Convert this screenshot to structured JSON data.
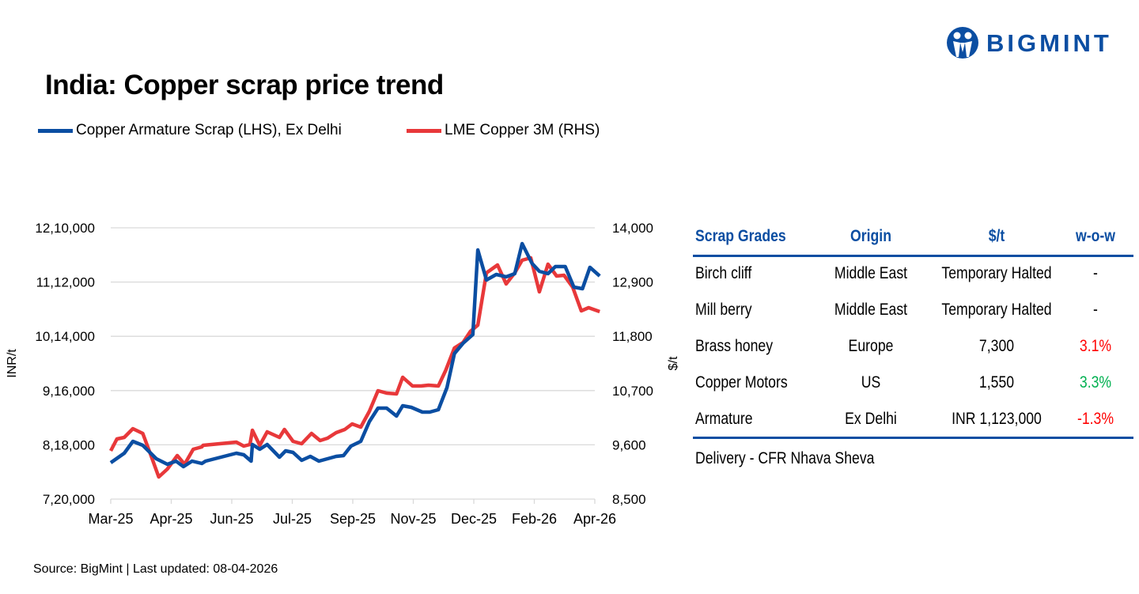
{
  "brand": {
    "name": "BIGMINT",
    "color": "#0b4ea2"
  },
  "title": "India: Copper scrap price trend",
  "source": "Source: BigMint | Last updated: 08-04-2026",
  "chart_data": {
    "type": "line",
    "title": "India: Copper scrap price trend",
    "y_left_label": "INR/t",
    "y_right_label": "$/t",
    "y_left_ticks": [
      "12,10,000",
      "11,12,000",
      "10,14,000",
      "9,16,000",
      "8,18,000",
      "7,20,000"
    ],
    "y_right_ticks": [
      "14,000",
      "12,900",
      "11,800",
      "10,700",
      "9,600",
      "8,500"
    ],
    "ylim_left": [
      720000,
      1210000
    ],
    "ylim_right": [
      8500,
      14000
    ],
    "x_ticks": [
      "Mar-25",
      "Apr-25",
      "Jun-25",
      "Jul-25",
      "Sep-25",
      "Nov-25",
      "Dec-25",
      "Feb-26",
      "Apr-26"
    ],
    "xlim": [
      "2025-03-01",
      "2026-03-29"
    ],
    "grid": "horizontal",
    "legend_position": "top-left",
    "series": [
      {
        "name": "Copper Armature Scrap (LHS), Ex Delhi",
        "axis": "left",
        "color": "#0b4ea2",
        "points": [
          [
            "2025-03-01",
            785700
          ],
          [
            "2025-03-12",
            802850
          ],
          [
            "2025-03-19",
            824300
          ],
          [
            "2025-03-27",
            817100
          ],
          [
            "2025-04-07",
            792900
          ],
          [
            "2025-04-16",
            782900
          ],
          [
            "2025-04-23",
            788600
          ],
          [
            "2025-04-29",
            778600
          ],
          [
            "2025-05-06",
            788600
          ],
          [
            "2025-05-14",
            784300
          ],
          [
            "2025-05-17",
            788600
          ],
          [
            "2025-06-11",
            802900
          ],
          [
            "2025-06-17",
            800000
          ],
          [
            "2025-06-23",
            788600
          ],
          [
            "2025-06-24",
            818600
          ],
          [
            "2025-06-30",
            810000
          ],
          [
            "2025-07-06",
            818600
          ],
          [
            "2025-07-16",
            795700
          ],
          [
            "2025-07-21",
            807100
          ],
          [
            "2025-07-27",
            804300
          ],
          [
            "2025-08-03",
            790000
          ],
          [
            "2025-08-10",
            797100
          ],
          [
            "2025-08-17",
            788600
          ],
          [
            "2025-08-31",
            797100
          ],
          [
            "2025-09-06",
            798600
          ],
          [
            "2025-09-12",
            815700
          ],
          [
            "2025-09-20",
            824300
          ],
          [
            "2025-09-27",
            860000
          ],
          [
            "2025-10-04",
            884300
          ],
          [
            "2025-10-11",
            884300
          ],
          [
            "2025-10-19",
            870000
          ],
          [
            "2025-10-24",
            888600
          ],
          [
            "2025-10-31",
            885700
          ],
          [
            "2025-11-09",
            877100
          ],
          [
            "2025-11-15",
            877100
          ],
          [
            "2025-11-22",
            881400
          ],
          [
            "2025-11-29",
            921400
          ],
          [
            "2025-12-05",
            982900
          ],
          [
            "2025-12-12",
            1001400
          ],
          [
            "2025-12-20",
            1017100
          ],
          [
            "2025-12-24",
            1170000
          ],
          [
            "2025-12-31",
            1115700
          ],
          [
            "2026-01-08",
            1125700
          ],
          [
            "2026-01-16",
            1121400
          ],
          [
            "2026-01-23",
            1127100
          ],
          [
            "2026-01-29",
            1181400
          ],
          [
            "2026-02-06",
            1145700
          ],
          [
            "2026-02-12",
            1131400
          ],
          [
            "2026-02-19",
            1127100
          ],
          [
            "2026-02-25",
            1140000
          ],
          [
            "2026-03-05",
            1140000
          ],
          [
            "2026-03-12",
            1102900
          ],
          [
            "2026-03-19",
            1100000
          ],
          [
            "2026-03-25",
            1138600
          ],
          [
            "2026-04-02",
            1123000
          ]
        ]
      },
      {
        "name": "LME Copper 3M (RHS)",
        "axis": "right",
        "color": "#e8383a",
        "points": [
          [
            "2025-03-01",
            9478
          ],
          [
            "2025-03-06",
            9719
          ],
          [
            "2025-03-12",
            9751
          ],
          [
            "2025-03-19",
            9927
          ],
          [
            "2025-03-27",
            9831
          ],
          [
            "2025-04-02",
            9430
          ],
          [
            "2025-04-09",
            8949
          ],
          [
            "2025-04-16",
            9109
          ],
          [
            "2025-04-24",
            9382
          ],
          [
            "2025-04-30",
            9205
          ],
          [
            "2025-05-07",
            9510
          ],
          [
            "2025-05-14",
            9558
          ],
          [
            "2025-05-15",
            9590
          ],
          [
            "2025-06-11",
            9654
          ],
          [
            "2025-06-17",
            9574
          ],
          [
            "2025-06-22",
            9606
          ],
          [
            "2025-06-24",
            9895
          ],
          [
            "2025-06-30",
            9590
          ],
          [
            "2025-07-06",
            9863
          ],
          [
            "2025-07-16",
            9751
          ],
          [
            "2025-07-20",
            9911
          ],
          [
            "2025-07-27",
            9670
          ],
          [
            "2025-08-03",
            9622
          ],
          [
            "2025-08-11",
            9831
          ],
          [
            "2025-08-18",
            9687
          ],
          [
            "2025-08-24",
            9735
          ],
          [
            "2025-08-31",
            9847
          ],
          [
            "2025-09-07",
            9911
          ],
          [
            "2025-09-13",
            10023
          ],
          [
            "2025-09-20",
            9959
          ],
          [
            "2025-09-27",
            10280
          ],
          [
            "2025-10-04",
            10697
          ],
          [
            "2025-10-11",
            10649
          ],
          [
            "2025-10-19",
            10633
          ],
          [
            "2025-10-24",
            10969
          ],
          [
            "2025-11-01",
            10793
          ],
          [
            "2025-11-08",
            10793
          ],
          [
            "2025-11-14",
            10809
          ],
          [
            "2025-11-22",
            10793
          ],
          [
            "2025-11-28",
            11114
          ],
          [
            "2025-12-05",
            11563
          ],
          [
            "2025-12-12",
            11675
          ],
          [
            "2025-12-18",
            11899
          ],
          [
            "2025-12-24",
            12028
          ],
          [
            "2025-12-31",
            13086
          ],
          [
            "2026-01-09",
            13246
          ],
          [
            "2026-01-16",
            12862
          ],
          [
            "2026-01-23",
            13086
          ],
          [
            "2026-01-29",
            13343
          ],
          [
            "2026-02-05",
            13391
          ],
          [
            "2026-02-12",
            12701
          ],
          [
            "2026-02-19",
            13262
          ],
          [
            "2026-02-26",
            13022
          ],
          [
            "2026-03-04",
            13038
          ],
          [
            "2026-03-11",
            12797
          ],
          [
            "2026-03-18",
            12316
          ],
          [
            "2026-03-24",
            12380
          ],
          [
            "2026-04-02",
            12300
          ]
        ]
      }
    ]
  },
  "table": {
    "headers": [
      "Scrap Grades",
      "Origin",
      "$/t",
      "w-o-w"
    ],
    "rows": [
      {
        "grade": "Birch cliff",
        "origin": "Middle East",
        "price": "Temporary Halted",
        "wow": "-",
        "wow_color": "#000000"
      },
      {
        "grade": "Mill berry",
        "origin": "Middle East",
        "price": "Temporary Halted",
        "wow": "-",
        "wow_color": "#000000"
      },
      {
        "grade": "Brass honey",
        "origin": "Europe",
        "price": "7,300",
        "wow": "3.1%",
        "wow_color": "#ff0000"
      },
      {
        "grade": "Copper Motors",
        "origin": "US",
        "price": "1,550",
        "wow": "3.3%",
        "wow_color": "#00b050"
      },
      {
        "grade": "Armature",
        "origin": "Ex Delhi",
        "price": "INR 1,123,000",
        "wow": "-1.3%",
        "wow_color": "#ff0000"
      }
    ],
    "footnote": "Delivery - CFR Nhava Sheva"
  }
}
